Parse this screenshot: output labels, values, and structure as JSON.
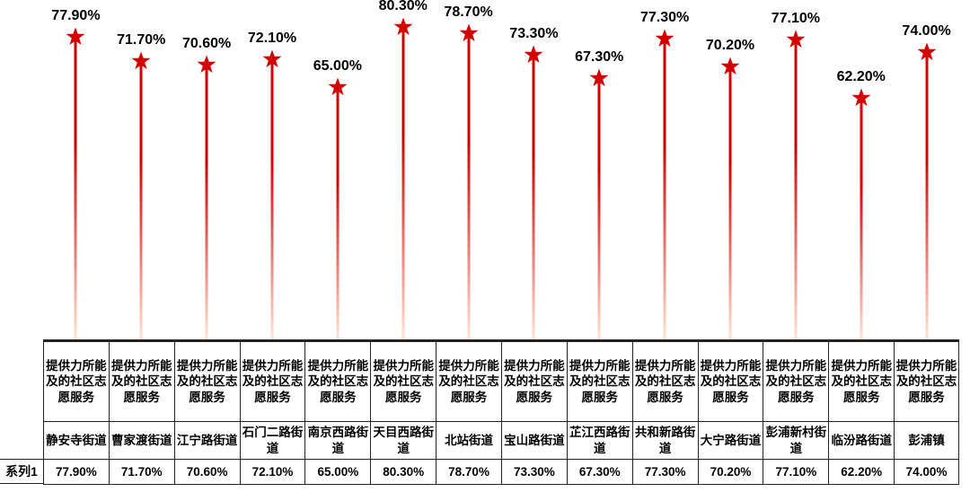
{
  "chart": {
    "type": "lollipop-bar",
    "series_label": "系列1",
    "category_text": "提供力所能及的社区志愿服务",
    "background_color": "#ffffff",
    "text_color": "#000000",
    "stem_color_top": "#d20000",
    "stem_color_bottom": "#ffe4d6",
    "star_fill": "#d20000",
    "grid_color": "#222222",
    "value_fontsize": 16,
    "label_fontsize": 13.5,
    "ylim_min": 0,
    "ylim_max": 85,
    "categories": [
      {
        "street": "静安寺街道",
        "value_label": "77.90%",
        "value": 77.9
      },
      {
        "street": "曹家渡街道",
        "value_label": "71.70%",
        "value": 71.7
      },
      {
        "street": "江宁路街道",
        "value_label": "70.60%",
        "value": 70.6
      },
      {
        "street": "石门二路街道",
        "value_label": "72.10%",
        "value": 72.1
      },
      {
        "street": "南京西路街道",
        "value_label": "65.00%",
        "value": 65.0
      },
      {
        "street": "天目西路街道",
        "value_label": "80.30%",
        "value": 80.3
      },
      {
        "street": "北站街道",
        "value_label": "78.70%",
        "value": 78.7
      },
      {
        "street": "宝山路街道",
        "value_label": "73.30%",
        "value": 73.3
      },
      {
        "street": "芷江西路街道",
        "value_label": "67.30%",
        "value": 67.3
      },
      {
        "street": "共和新路街道",
        "value_label": "77.30%",
        "value": 77.3
      },
      {
        "street": "大宁路街道",
        "value_label": "70.20%",
        "value": 70.2
      },
      {
        "street": "彭浦新村街道",
        "value_label": "77.10%",
        "value": 77.1
      },
      {
        "street": "临汾路街道",
        "value_label": "62.20%",
        "value": 62.2
      },
      {
        "street": "彭浦镇",
        "value_label": "74.00%",
        "value": 74.0
      }
    ]
  }
}
